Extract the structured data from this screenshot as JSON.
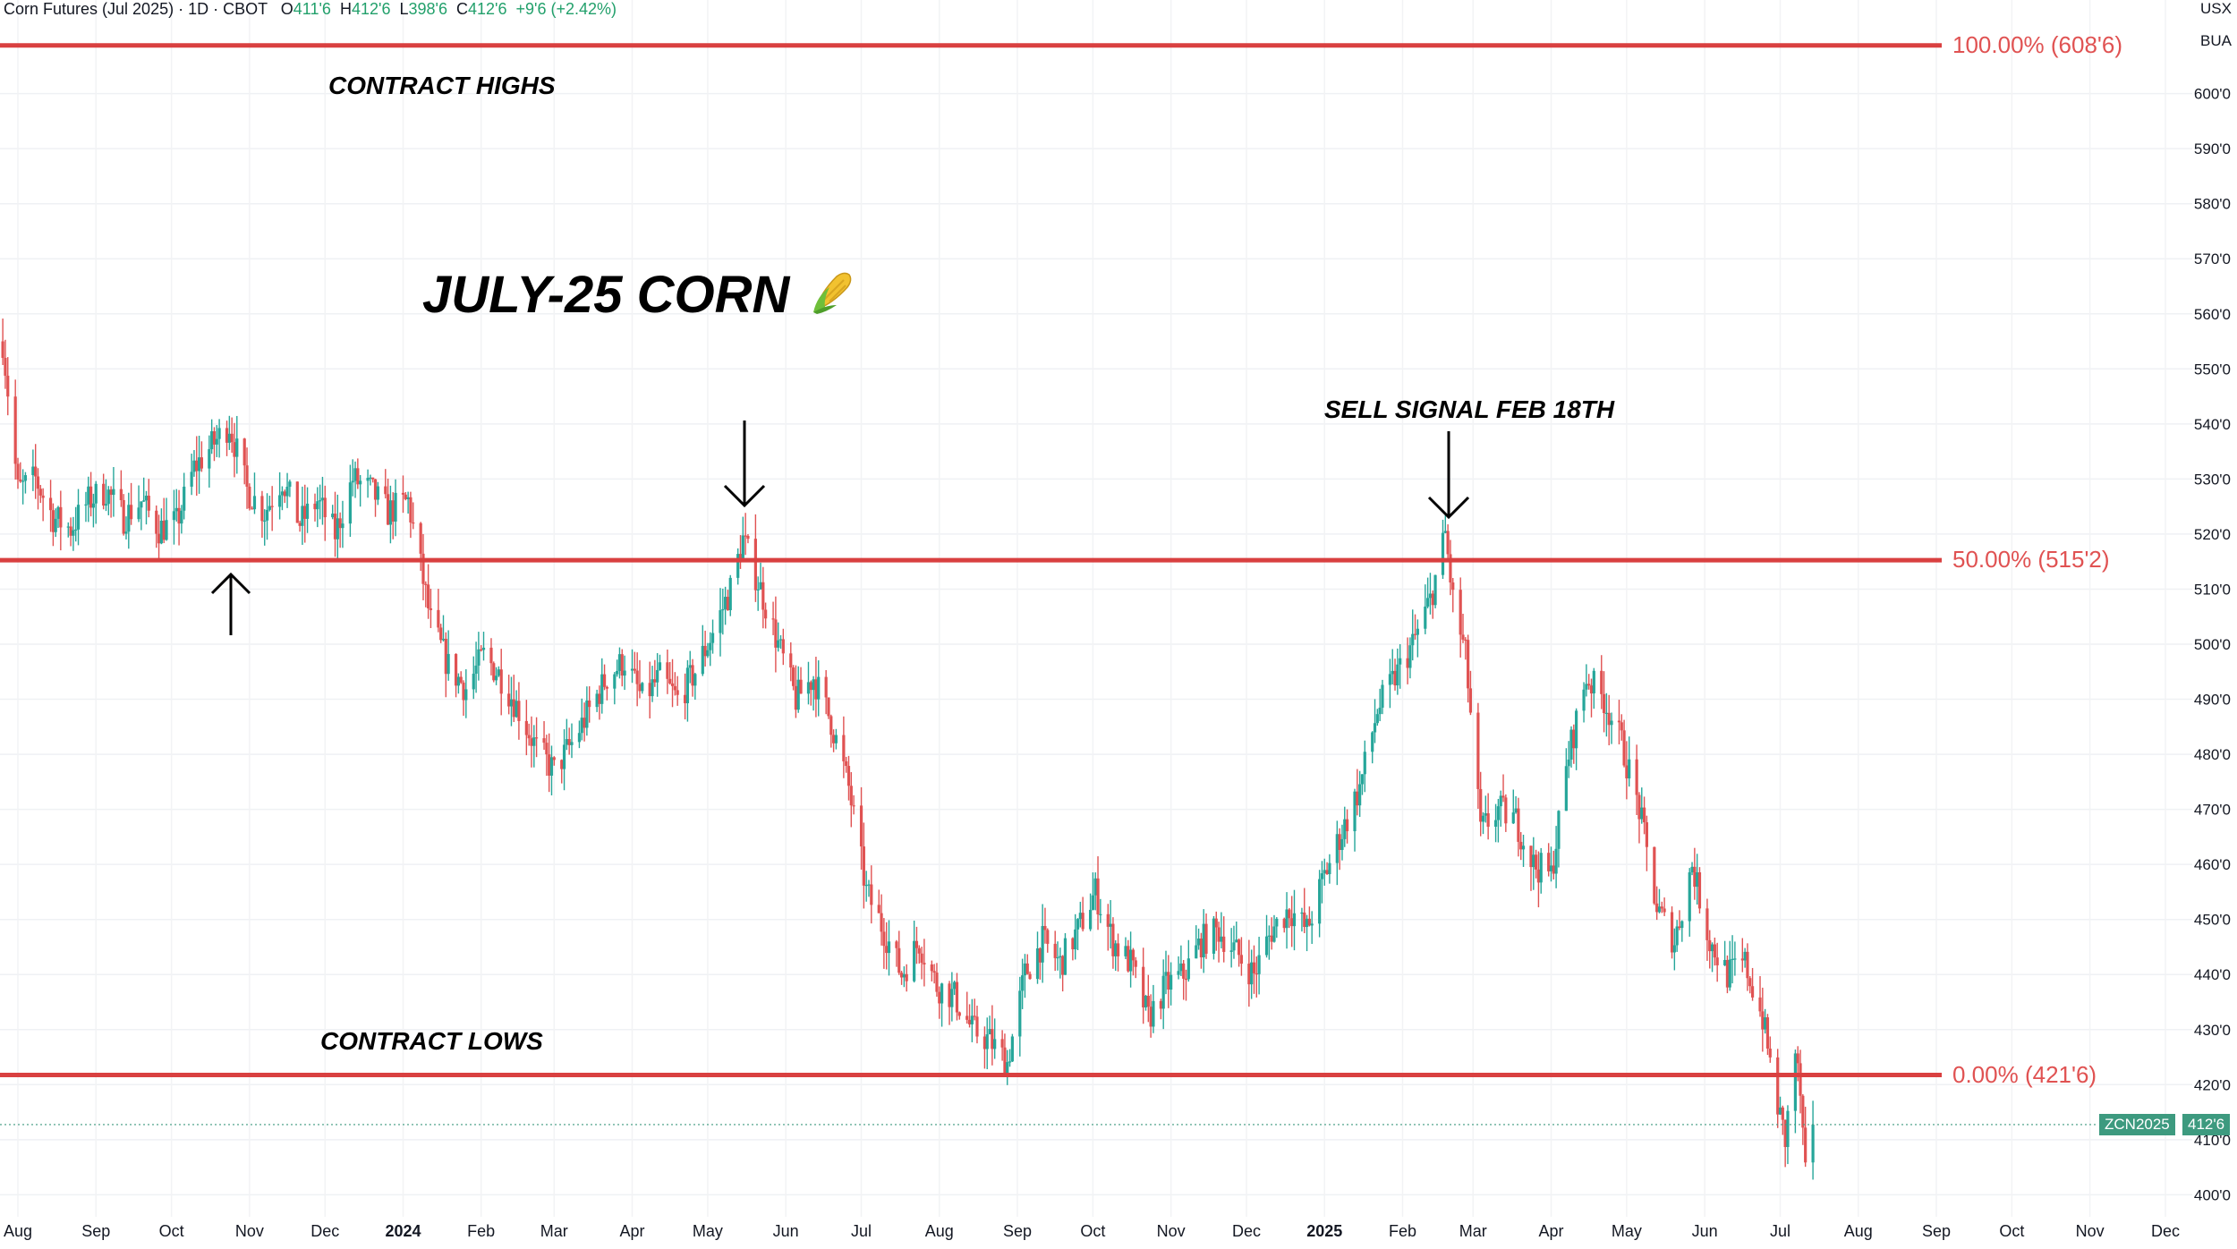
{
  "header": {
    "symbol_title": "Corn Futures (Jul 2025) · 1D · CBOT",
    "open_label": "O",
    "open": "411'6",
    "high_label": "H",
    "high": "412'6",
    "low_label": "L",
    "low": "398'6",
    "close_label": "C",
    "close": "412'6",
    "change": "+9'6 (+2.42%)"
  },
  "currency": {
    "unit": "USX",
    "per": "BUA"
  },
  "annotations": {
    "title": "JULY-25 CORN",
    "title_icon": "corn-icon",
    "contract_highs": "CONTRACT HIGHS",
    "contract_lows": "CONTRACT LOWS",
    "sell_signal": "SELL SIGNAL FEB 18TH"
  },
  "fib_levels": [
    {
      "label": "100.00% (608'6)",
      "value": 608.75
    },
    {
      "label": "50.00% (515'2)",
      "value": 515.25
    },
    {
      "label": "0.00% (421'6)",
      "value": 421.75
    }
  ],
  "last_price_tag": {
    "symbol": "ZCN2025",
    "price": "412'6",
    "value": 412.75
  },
  "colors": {
    "up": "#26a69a",
    "down": "#e05252",
    "fib": "#d94040",
    "tag": "#3d9a7f"
  },
  "chart_data": {
    "type": "candlestick",
    "title": "JULY-25 CORN",
    "y_axis": {
      "min": 396,
      "max": 617,
      "ticks": [
        400,
        410,
        420,
        430,
        440,
        450,
        460,
        470,
        480,
        490,
        500,
        510,
        520,
        530,
        540,
        550,
        560,
        570,
        580,
        590,
        600
      ],
      "tick_labels": [
        "400'0",
        "410'0",
        "420'0",
        "430'0",
        "440'0",
        "450'0",
        "460'0",
        "470'0",
        "480'0",
        "490'0",
        "500'0",
        "510'0",
        "520'0",
        "530'0",
        "540'0",
        "550'0",
        "560'0",
        "570'0",
        "580'0",
        "590'0",
        "600'0"
      ]
    },
    "x_axis": {
      "ticks": [
        {
          "label": "Aug",
          "date": "2023-08-01"
        },
        {
          "label": "Sep",
          "date": "2023-09-01"
        },
        {
          "label": "Oct",
          "date": "2023-10-01"
        },
        {
          "label": "Nov",
          "date": "2023-11-01"
        },
        {
          "label": "Dec",
          "date": "2023-12-01"
        },
        {
          "label": "2024",
          "date": "2024-01-01",
          "bold": true
        },
        {
          "label": "Feb",
          "date": "2024-02-01"
        },
        {
          "label": "Mar",
          "date": "2024-03-01"
        },
        {
          "label": "Apr",
          "date": "2024-04-01"
        },
        {
          "label": "May",
          "date": "2024-05-01"
        },
        {
          "label": "Jun",
          "date": "2024-06-01"
        },
        {
          "label": "Jul",
          "date": "2024-07-01"
        },
        {
          "label": "Aug",
          "date": "2024-08-01"
        },
        {
          "label": "Sep",
          "date": "2024-09-01"
        },
        {
          "label": "Oct",
          "date": "2024-10-01"
        },
        {
          "label": "Nov",
          "date": "2024-11-01"
        },
        {
          "label": "Dec",
          "date": "2024-12-01"
        },
        {
          "label": "2025",
          "date": "2025-01-01",
          "bold": true
        },
        {
          "label": "Feb",
          "date": "2025-02-01"
        },
        {
          "label": "Mar",
          "date": "2025-03-01"
        },
        {
          "label": "Apr",
          "date": "2025-04-01"
        },
        {
          "label": "May",
          "date": "2025-05-01"
        },
        {
          "label": "Jun",
          "date": "2025-06-01"
        },
        {
          "label": "Jul",
          "date": "2025-07-01"
        },
        {
          "label": "Aug",
          "date": "2025-08-01"
        },
        {
          "label": "Sep",
          "date": "2025-09-01"
        },
        {
          "label": "Oct",
          "date": "2025-10-01"
        },
        {
          "label": "Nov",
          "date": "2025-11-01"
        },
        {
          "label": "Dec",
          "date": "2025-12-01"
        }
      ]
    },
    "close_path": [
      {
        "date": "2023-07-26",
        "close": 555
      },
      {
        "date": "2023-08-01",
        "close": 528
      },
      {
        "date": "2023-08-08",
        "close": 530
      },
      {
        "date": "2023-08-15",
        "close": 523
      },
      {
        "date": "2023-08-22",
        "close": 521
      },
      {
        "date": "2023-08-29",
        "close": 526
      },
      {
        "date": "2023-09-05",
        "close": 528
      },
      {
        "date": "2023-09-12",
        "close": 523
      },
      {
        "date": "2023-09-19",
        "close": 526
      },
      {
        "date": "2023-09-26",
        "close": 521
      },
      {
        "date": "2023-10-03",
        "close": 522
      },
      {
        "date": "2023-10-10",
        "close": 532
      },
      {
        "date": "2023-10-17",
        "close": 536
      },
      {
        "date": "2023-10-24",
        "close": 540
      },
      {
        "date": "2023-10-31",
        "close": 528
      },
      {
        "date": "2023-11-07",
        "close": 524
      },
      {
        "date": "2023-11-14",
        "close": 530
      },
      {
        "date": "2023-11-21",
        "close": 522
      },
      {
        "date": "2023-11-28",
        "close": 526
      },
      {
        "date": "2023-12-05",
        "close": 520
      },
      {
        "date": "2023-12-12",
        "close": 530
      },
      {
        "date": "2023-12-19",
        "close": 528
      },
      {
        "date": "2023-12-26",
        "close": 524
      },
      {
        "date": "2024-01-03",
        "close": 526
      },
      {
        "date": "2024-01-08",
        "close": 514
      },
      {
        "date": "2024-01-12",
        "close": 504
      },
      {
        "date": "2024-01-19",
        "close": 496
      },
      {
        "date": "2024-01-26",
        "close": 492
      },
      {
        "date": "2024-02-02",
        "close": 498
      },
      {
        "date": "2024-02-09",
        "close": 494
      },
      {
        "date": "2024-02-16",
        "close": 488
      },
      {
        "date": "2024-02-23",
        "close": 481
      },
      {
        "date": "2024-03-01",
        "close": 477
      },
      {
        "date": "2024-03-08",
        "close": 482
      },
      {
        "date": "2024-03-15",
        "close": 488
      },
      {
        "date": "2024-03-22",
        "close": 494
      },
      {
        "date": "2024-03-29",
        "close": 497
      },
      {
        "date": "2024-04-05",
        "close": 490
      },
      {
        "date": "2024-04-12",
        "close": 494
      },
      {
        "date": "2024-04-19",
        "close": 490
      },
      {
        "date": "2024-04-26",
        "close": 495
      },
      {
        "date": "2024-05-03",
        "close": 502
      },
      {
        "date": "2024-05-10",
        "close": 510
      },
      {
        "date": "2024-05-15",
        "close": 519
      },
      {
        "date": "2024-05-22",
        "close": 510
      },
      {
        "date": "2024-05-29",
        "close": 500
      },
      {
        "date": "2024-06-05",
        "close": 490
      },
      {
        "date": "2024-06-12",
        "close": 494
      },
      {
        "date": "2024-06-19",
        "close": 486
      },
      {
        "date": "2024-06-26",
        "close": 474
      },
      {
        "date": "2024-07-03",
        "close": 455
      },
      {
        "date": "2024-07-10",
        "close": 448
      },
      {
        "date": "2024-07-17",
        "close": 440
      },
      {
        "date": "2024-07-24",
        "close": 446
      },
      {
        "date": "2024-07-31",
        "close": 438
      },
      {
        "date": "2024-08-07",
        "close": 436
      },
      {
        "date": "2024-08-14",
        "close": 430
      },
      {
        "date": "2024-08-21",
        "close": 428
      },
      {
        "date": "2024-08-28",
        "close": 424
      },
      {
        "date": "2024-09-04",
        "close": 440
      },
      {
        "date": "2024-09-11",
        "close": 446
      },
      {
        "date": "2024-09-18",
        "close": 442
      },
      {
        "date": "2024-09-25",
        "close": 448
      },
      {
        "date": "2024-10-02",
        "close": 455
      },
      {
        "date": "2024-10-09",
        "close": 446
      },
      {
        "date": "2024-10-16",
        "close": 442
      },
      {
        "date": "2024-10-23",
        "close": 432
      },
      {
        "date": "2024-10-30",
        "close": 438
      },
      {
        "date": "2024-11-06",
        "close": 440
      },
      {
        "date": "2024-11-13",
        "close": 446
      },
      {
        "date": "2024-11-20",
        "close": 448
      },
      {
        "date": "2024-11-27",
        "close": 444
      },
      {
        "date": "2024-12-04",
        "close": 440
      },
      {
        "date": "2024-12-11",
        "close": 448
      },
      {
        "date": "2024-12-18",
        "close": 452
      },
      {
        "date": "2024-12-25",
        "close": 448
      },
      {
        "date": "2025-01-01",
        "close": 458
      },
      {
        "date": "2025-01-08",
        "close": 466
      },
      {
        "date": "2025-01-15",
        "close": 474
      },
      {
        "date": "2025-01-22",
        "close": 488
      },
      {
        "date": "2025-01-29",
        "close": 494
      },
      {
        "date": "2025-02-05",
        "close": 500
      },
      {
        "date": "2025-02-12",
        "close": 508
      },
      {
        "date": "2025-02-18",
        "close": 520
      },
      {
        "date": "2025-02-21",
        "close": 508
      },
      {
        "date": "2025-02-26",
        "close": 498
      },
      {
        "date": "2025-03-04",
        "close": 466
      },
      {
        "date": "2025-03-11",
        "close": 470
      },
      {
        "date": "2025-03-18",
        "close": 468
      },
      {
        "date": "2025-03-25",
        "close": 460
      },
      {
        "date": "2025-04-01",
        "close": 458
      },
      {
        "date": "2025-04-08",
        "close": 480
      },
      {
        "date": "2025-04-15",
        "close": 494
      },
      {
        "date": "2025-04-22",
        "close": 490
      },
      {
        "date": "2025-04-29",
        "close": 482
      },
      {
        "date": "2025-05-06",
        "close": 470
      },
      {
        "date": "2025-05-13",
        "close": 452
      },
      {
        "date": "2025-05-20",
        "close": 446
      },
      {
        "date": "2025-05-27",
        "close": 460
      },
      {
        "date": "2025-06-03",
        "close": 446
      },
      {
        "date": "2025-06-10",
        "close": 440
      },
      {
        "date": "2025-06-17",
        "close": 442
      },
      {
        "date": "2025-06-24",
        "close": 432
      },
      {
        "date": "2025-06-30",
        "close": 416
      },
      {
        "date": "2025-07-03",
        "close": 410
      },
      {
        "date": "2025-07-07",
        "close": 426
      },
      {
        "date": "2025-07-09",
        "close": 418
      },
      {
        "date": "2025-07-11",
        "close": 403
      },
      {
        "date": "2025-07-14",
        "close": 412.75
      }
    ]
  }
}
